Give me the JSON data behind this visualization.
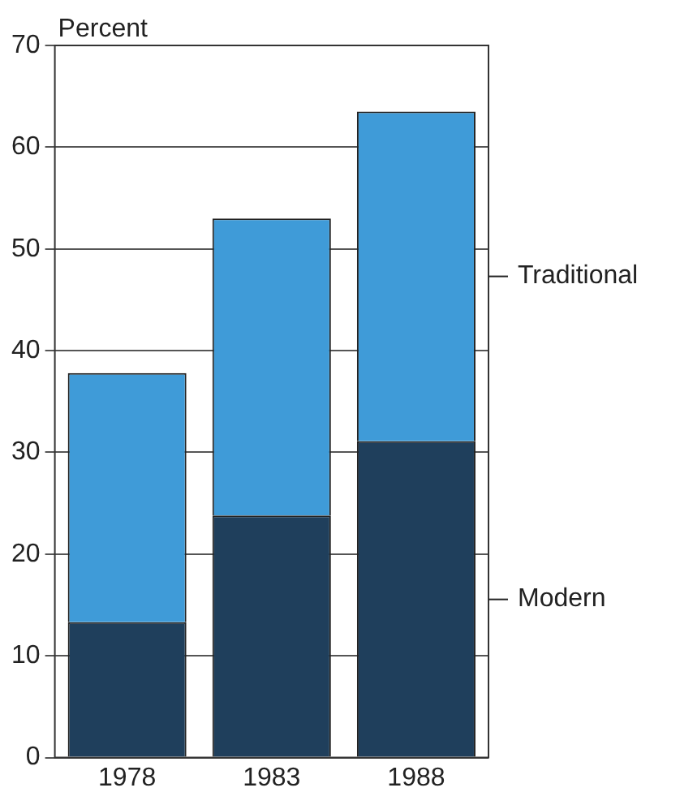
{
  "chart_data": {
    "type": "bar",
    "ylabel": "Percent",
    "categories": [
      "1978",
      "1983",
      "1988"
    ],
    "stacked": true,
    "series": [
      {
        "name": "Modern",
        "color": "#1f3f5c",
        "values": [
          13.3,
          23.8,
          31.1
        ]
      },
      {
        "name": "Traditional",
        "color": "#3f9bd8",
        "values": [
          24.5,
          29.2,
          32.4
        ]
      }
    ],
    "ylim": [
      0,
      70
    ],
    "yticks": [
      0,
      10,
      20,
      30,
      40,
      50,
      60,
      70
    ],
    "grid": "y",
    "legend": "right"
  }
}
